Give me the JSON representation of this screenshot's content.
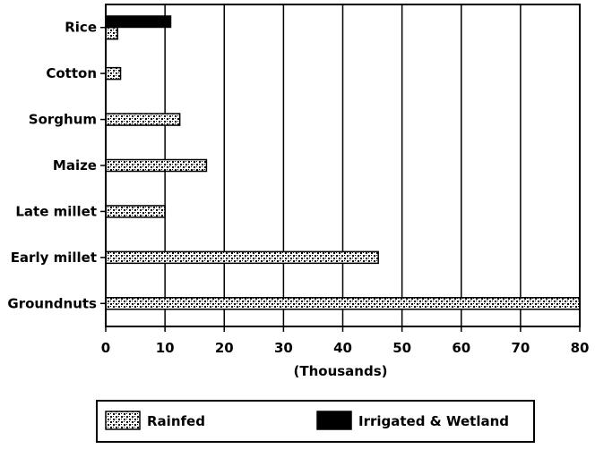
{
  "chart_data": {
    "type": "bar",
    "orientation": "horizontal",
    "categories": [
      "Rice",
      "Cotton",
      "Sorghum",
      "Maize",
      "Late millet",
      "Early millet",
      "Groundnuts"
    ],
    "series": [
      {
        "name": "Rainfed",
        "values": [
          2,
          2.5,
          12.5,
          17,
          10,
          46,
          80
        ],
        "color": "#000000",
        "pattern": "dotted-crosshatch"
      },
      {
        "name": "Irrigated & Wetland",
        "values": [
          11,
          0,
          0,
          0,
          0,
          0,
          0
        ],
        "color": "#000000",
        "pattern": "solid"
      }
    ],
    "xlabel": "(Thousands)",
    "ylabel": "",
    "title": "",
    "xlim": [
      0,
      80
    ],
    "xticks": [
      "0",
      "10",
      "20",
      "30",
      "40",
      "50",
      "60",
      "70",
      "80"
    ],
    "grid": "vertical",
    "legend_position": "bottom"
  }
}
